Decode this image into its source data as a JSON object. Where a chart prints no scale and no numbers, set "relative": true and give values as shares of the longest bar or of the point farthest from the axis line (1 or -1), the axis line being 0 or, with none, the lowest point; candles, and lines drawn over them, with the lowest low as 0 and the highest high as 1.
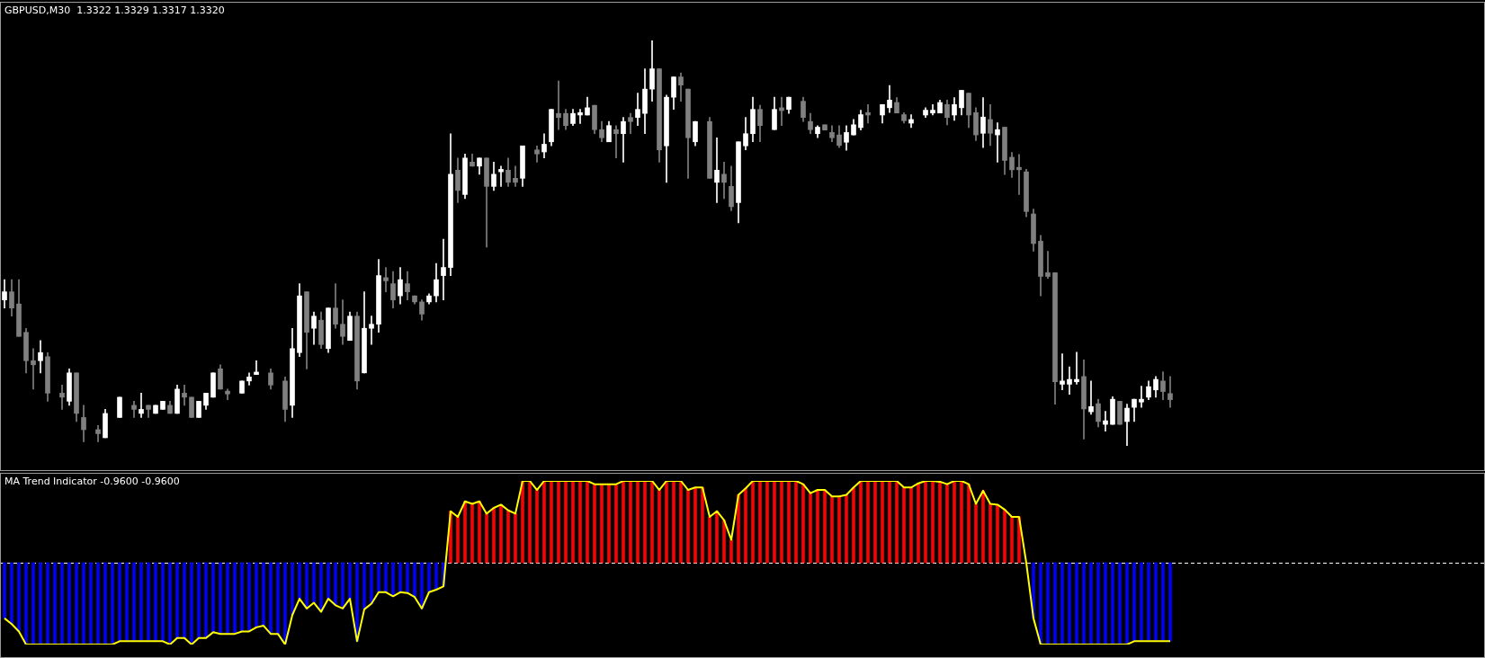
{
  "chart_data": [
    {
      "type": "candlestick",
      "title": "GBPUSD,M30  1.3322 1.3329 1.3317 1.3320",
      "relative": true,
      "tick_labels": false,
      "categories": [
        null,
        null,
        null,
        null,
        null,
        null,
        null,
        null,
        null,
        null,
        null,
        null,
        null,
        null,
        null,
        null,
        null,
        null,
        null,
        null,
        null,
        null,
        null,
        null,
        null,
        null,
        null,
        null,
        null,
        null,
        null,
        null,
        null,
        null,
        null,
        null,
        null,
        null,
        null,
        null,
        null,
        null,
        null,
        null,
        null,
        null,
        null,
        null,
        null,
        null,
        null,
        null,
        null,
        null,
        null,
        null,
        null,
        null,
        null,
        null,
        null,
        null,
        null,
        null,
        null,
        null,
        null,
        null,
        null,
        null,
        null,
        null,
        null,
        null,
        null,
        null,
        null,
        null,
        null,
        null,
        null,
        null,
        null,
        null,
        null,
        null,
        null,
        null,
        null,
        null,
        null,
        null,
        null,
        null,
        null,
        null,
        null,
        null,
        null,
        null,
        null,
        null,
        null,
        null,
        null,
        null,
        null,
        null,
        null,
        null,
        null,
        null,
        null,
        null,
        null,
        null,
        null,
        null,
        null,
        null,
        null,
        null,
        null,
        null,
        null,
        null,
        null,
        null,
        null,
        null,
        null,
        null,
        null,
        null,
        null,
        null,
        null,
        null,
        null,
        null,
        null,
        null,
        null,
        null,
        null,
        null,
        null,
        null,
        null,
        null,
        null,
        null,
        null,
        null,
        null,
        null,
        null,
        null,
        null,
        null,
        null,
        null,
        null
      ],
      "ohlc": [
        [
          0.36,
          0.41,
          0.34,
          0.38
        ],
        [
          0.38,
          0.41,
          0.32,
          0.34
        ],
        [
          0.35,
          0.41,
          0.27,
          0.27
        ],
        [
          0.28,
          0.29,
          0.18,
          0.21
        ],
        [
          0.21,
          0.24,
          0.14,
          0.2
        ],
        [
          0.21,
          0.26,
          0.18,
          0.23
        ],
        [
          0.22,
          0.23,
          0.11,
          0.13
        ],
        null,
        [
          0.13,
          0.15,
          0.09,
          0.12
        ],
        [
          0.11,
          0.19,
          0.1,
          0.18
        ],
        [
          0.18,
          0.18,
          0.06,
          0.08
        ],
        [
          0.07,
          0.1,
          0.01,
          0.04
        ],
        null,
        [
          0.04,
          0.05,
          0.01,
          0.03
        ],
        [
          0.02,
          0.09,
          0.02,
          0.08
        ],
        null,
        [
          0.07,
          0.12,
          0.07,
          0.12
        ],
        null,
        [
          0.1,
          0.11,
          0.07,
          0.09
        ],
        [
          0.08,
          0.13,
          0.07,
          0.09
        ],
        [
          0.1,
          0.1,
          0.07,
          0.09
        ],
        [
          0.08,
          0.1,
          0.08,
          0.1
        ],
        [
          0.09,
          0.11,
          0.09,
          0.11
        ],
        [
          0.1,
          0.11,
          0.08,
          0.08
        ],
        [
          0.08,
          0.15,
          0.08,
          0.14
        ],
        [
          0.13,
          0.15,
          0.1,
          0.12
        ],
        [
          0.12,
          0.12,
          0.07,
          0.07
        ],
        [
          0.07,
          0.11,
          0.07,
          0.11
        ],
        [
          0.1,
          0.13,
          0.09,
          0.13
        ],
        [
          0.12,
          0.18,
          0.12,
          0.18
        ],
        [
          0.19,
          0.2,
          0.14,
          0.14
        ],
        [
          0.135,
          0.14,
          0.114,
          0.128
        ],
        null,
        [
          0.13,
          0.16,
          0.13,
          0.16
        ],
        [
          0.16,
          0.18,
          0.15,
          0.17
        ],
        [
          0.176,
          0.21,
          0.176,
          0.182
        ],
        null,
        [
          0.18,
          0.19,
          0.14,
          0.15
        ],
        null,
        [
          0.16,
          0.17,
          0.06,
          0.09
        ],
        [
          0.1,
          0.29,
          0.07,
          0.24
        ],
        [
          0.23,
          0.4,
          0.22,
          0.37
        ],
        [
          0.38,
          0.38,
          0.19,
          0.28
        ],
        [
          0.29,
          0.33,
          0.25,
          0.32
        ],
        [
          0.31,
          0.33,
          0.24,
          0.25
        ],
        [
          0.24,
          0.34,
          0.23,
          0.34
        ],
        [
          0.34,
          0.4,
          0.29,
          0.3
        ],
        [
          0.3,
          0.36,
          0.25,
          0.27
        ],
        [
          0.26,
          0.33,
          0.26,
          0.32
        ],
        [
          0.32,
          0.33,
          0.14,
          0.16
        ],
        [
          0.18,
          0.38,
          0.18,
          0.29
        ],
        [
          0.29,
          0.32,
          0.25,
          0.3
        ],
        [
          0.3,
          0.46,
          0.28,
          0.42
        ],
        [
          0.415,
          0.44,
          0.38,
          0.407
        ],
        [
          0.4,
          0.43,
          0.34,
          0.36
        ],
        [
          0.37,
          0.44,
          0.35,
          0.41
        ],
        [
          0.4,
          0.43,
          0.36,
          0.38
        ],
        [
          0.37,
          0.37,
          0.35,
          0.355
        ],
        [
          0.355,
          0.36,
          0.31,
          0.325
        ],
        [
          0.355,
          0.375,
          0.35,
          0.37
        ],
        [
          0.37,
          0.45,
          0.355,
          0.41
        ],
        [
          0.42,
          0.51,
          0.36,
          0.44
        ],
        [
          0.44,
          0.77,
          0.42,
          0.67
        ],
        [
          0.68,
          0.71,
          0.6,
          0.63
        ],
        [
          0.62,
          0.72,
          0.61,
          0.71
        ],
        [
          0.7,
          0.72,
          0.69,
          0.69
        ],
        [
          0.69,
          0.71,
          0.67,
          0.71
        ],
        [
          0.71,
          0.71,
          0.49,
          0.64
        ],
        [
          0.64,
          0.7,
          0.63,
          0.67
        ],
        [
          0.676,
          0.69,
          0.64,
          0.682
        ],
        [
          0.68,
          0.71,
          0.64,
          0.65
        ],
        [
          0.66,
          0.69,
          0.64,
          0.65
        ],
        [
          0.66,
          0.74,
          0.64,
          0.74
        ],
        null,
        [
          0.73,
          0.74,
          0.7,
          0.72
        ],
        [
          0.725,
          0.77,
          0.71,
          0.744
        ],
        [
          0.75,
          0.83,
          0.74,
          0.83
        ],
        [
          0.82,
          0.9,
          0.78,
          0.81
        ],
        [
          0.82,
          0.83,
          0.78,
          0.79
        ],
        [
          0.795,
          0.83,
          0.79,
          0.82
        ],
        [
          0.816,
          0.83,
          0.795,
          0.822
        ],
        [
          0.816,
          0.86,
          0.816,
          0.834
        ],
        [
          0.84,
          0.84,
          0.77,
          0.78
        ],
        [
          0.78,
          0.8,
          0.75,
          0.76
        ],
        [
          0.75,
          0.8,
          0.75,
          0.79
        ],
        [
          0.78,
          0.79,
          0.71,
          0.77
        ],
        [
          0.77,
          0.81,
          0.7,
          0.8
        ],
        [
          0.81,
          0.82,
          0.77,
          0.8
        ],
        [
          0.81,
          0.87,
          0.79,
          0.83
        ],
        [
          0.82,
          0.93,
          0.77,
          0.88
        ],
        [
          0.88,
          1,
          0.85,
          0.93
        ],
        [
          0.93,
          0.93,
          0.7,
          0.73
        ],
        [
          0.74,
          0.865,
          0.65,
          0.86
        ],
        [
          0.86,
          0.91,
          0.83,
          0.91
        ],
        [
          0.91,
          0.92,
          0.85,
          0.89
        ],
        [
          0.88,
          0.88,
          0.66,
          0.76
        ],
        [
          0.75,
          0.8,
          0.74,
          0.8
        ],
        null,
        [
          0.8,
          0.81,
          0.66,
          0.66
        ],
        [
          0.65,
          0.76,
          0.6,
          0.68
        ],
        [
          0.67,
          0.7,
          0.61,
          0.65
        ],
        [
          0.64,
          0.69,
          0.58,
          0.59
        ],
        [
          0.6,
          0.75,
          0.55,
          0.75
        ],
        [
          0.74,
          0.81,
          0.73,
          0.77
        ],
        [
          0.77,
          0.86,
          0.75,
          0.83
        ],
        [
          0.83,
          0.84,
          0.75,
          0.79
        ],
        null,
        [
          0.78,
          0.86,
          0.78,
          0.83
        ],
        [
          0.834,
          0.86,
          0.79,
          0.827
        ],
        [
          0.83,
          0.86,
          0.82,
          0.86
        ],
        null,
        [
          0.85,
          0.86,
          0.8,
          0.81
        ],
        [
          0.8,
          0.82,
          0.77,
          0.78
        ],
        [
          0.77,
          0.79,
          0.76,
          0.786
        ],
        [
          0.792,
          0.792,
          0.779,
          0.779
        ],
        [
          0.773,
          0.79,
          0.75,
          0.76
        ],
        [
          0.767,
          0.79,
          0.736,
          0.741
        ],
        [
          0.749,
          0.79,
          0.729,
          0.773
        ],
        [
          0.767,
          0.805,
          0.767,
          0.792
        ],
        [
          0.785,
          0.828,
          0.779,
          0.817
        ],
        [
          0.822,
          0.842,
          0.796,
          0.816
        ],
        null,
        [
          0.816,
          0.842,
          0.796,
          0.842
        ],
        [
          0.834,
          0.889,
          0.822,
          0.853
        ],
        [
          0.847,
          0.859,
          0.821,
          0.821
        ],
        [
          0.817,
          0.822,
          0.796,
          0.802
        ],
        [
          0.796,
          0.817,
          0.785,
          0.805
        ],
        null,
        [
          0.816,
          0.834,
          0.81,
          0.828
        ],
        [
          0.821,
          0.842,
          0.816,
          0.828
        ],
        [
          0.821,
          0.853,
          0.821,
          0.847
        ],
        [
          0.842,
          0.853,
          0.792,
          0.81
        ],
        [
          0.816,
          0.859,
          0.803,
          0.842
        ],
        [
          0.834,
          0.877,
          0.816,
          0.877
        ],
        [
          0.87,
          0.87,
          0.785,
          0.816
        ],
        [
          0.822,
          0.834,
          0.753,
          0.767
        ],
        [
          0.771,
          0.859,
          0.736,
          0.811
        ],
        [
          0.805,
          0.842,
          0.741,
          0.771
        ],
        [
          0.767,
          0.797,
          0.7,
          0.78
        ],
        [
          0.786,
          0.786,
          0.669,
          0.704
        ],
        [
          0.712,
          0.724,
          0.662,
          0.681
        ],
        [
          0.687,
          0.719,
          0.62,
          0.681
        ],
        [
          0.676,
          0.682,
          0.565,
          0.578
        ],
        [
          0.572,
          0.584,
          0.48,
          0.499
        ],
        [
          0.505,
          0.519,
          0.37,
          0.418
        ],
        [
          0.427,
          0.48,
          0.413,
          0.418
        ],
        [
          0.427,
          0.427,
          0.103,
          0.158
        ],
        [
          0.152,
          0.227,
          0.138,
          0.16
        ],
        [
          0.152,
          0.195,
          0.127,
          0.164
        ],
        [
          0.158,
          0.231,
          0.152,
          0.164
        ],
        [
          0.171,
          0.212,
          0.017,
          0.091
        ],
        [
          0.084,
          0.16,
          0.078,
          0.097
        ],
        [
          0.104,
          0.115,
          0.047,
          0.06
        ],
        [
          0.053,
          0.085,
          0.036,
          0.062
        ],
        [
          0.053,
          0.121,
          0.053,
          0.115
        ],
        [
          0.11,
          0.11,
          0.053,
          0.053
        ],
        [
          0.06,
          0.103,
          0,
          0.093
        ],
        [
          0.095,
          0.115,
          0.06,
          0.115
        ],
        [
          0.108,
          0.147,
          0.095,
          0.115
        ],
        [
          0.12,
          0.16,
          0.114,
          0.146
        ],
        [
          0.138,
          0.171,
          0.12,
          0.164
        ],
        [
          0.16,
          0.183,
          0.114,
          0.134
        ],
        [
          0.129,
          0.171,
          0.095,
          0.114
        ]
      ],
      "colors": [
        "#ffffff",
        "#808080",
        "#808080",
        "#808080",
        "#808080",
        "#ffffff",
        "#808080",
        null,
        "#808080",
        "#ffffff",
        "#808080",
        "#808080",
        null,
        "#808080",
        "#ffffff",
        null,
        "#ffffff",
        null,
        "#808080",
        "#ffffff",
        "#808080",
        "#ffffff",
        "#ffffff",
        "#808080",
        "#ffffff",
        "#808080",
        "#808080",
        "#ffffff",
        "#ffffff",
        "#ffffff",
        "#808080",
        "#808080",
        null,
        "#ffffff",
        "#ffffff",
        "#ffffff",
        null,
        "#808080",
        null,
        "#808080",
        "#ffffff",
        "#ffffff",
        "#808080",
        "#ffffff",
        "#808080",
        "#ffffff",
        "#808080",
        "#808080",
        "#ffffff",
        "#808080",
        "#ffffff",
        "#ffffff",
        "#ffffff",
        "#808080",
        "#808080",
        "#ffffff",
        "#808080",
        "#808080",
        "#808080",
        "#ffffff",
        "#ffffff",
        "#ffffff",
        "#ffffff",
        "#808080",
        "#ffffff",
        "#808080",
        "#ffffff",
        "#808080",
        "#ffffff",
        "#ffffff",
        "#808080",
        "#808080",
        "#ffffff",
        null,
        "#808080",
        "#ffffff",
        "#ffffff",
        "#808080",
        "#808080",
        "#ffffff",
        "#ffffff",
        "#ffffff",
        "#808080",
        "#808080",
        "#ffffff",
        "#808080",
        "#ffffff",
        "#808080",
        "#ffffff",
        "#ffffff",
        "#ffffff",
        "#808080",
        "#ffffff",
        "#ffffff",
        "#808080",
        "#808080",
        "#ffffff",
        null,
        "#808080",
        "#ffffff",
        "#808080",
        "#808080",
        "#ffffff",
        "#ffffff",
        "#ffffff",
        "#808080",
        null,
        "#ffffff",
        "#808080",
        "#ffffff",
        null,
        "#808080",
        "#808080",
        "#ffffff",
        "#808080",
        "#808080",
        "#808080",
        "#ffffff",
        "#ffffff",
        "#ffffff",
        "#808080",
        null,
        "#ffffff",
        "#ffffff",
        "#808080",
        "#808080",
        "#ffffff",
        null,
        "#ffffff",
        "#ffffff",
        "#ffffff",
        "#808080",
        "#ffffff",
        "#ffffff",
        "#808080",
        "#808080",
        "#ffffff",
        "#808080",
        "#ffffff",
        "#808080",
        "#808080",
        "#808080",
        "#808080",
        "#808080",
        "#808080",
        "#808080",
        "#808080",
        "#ffffff",
        "#ffffff",
        "#ffffff",
        "#808080",
        "#ffffff",
        "#808080",
        "#ffffff",
        "#ffffff",
        "#808080",
        "#ffffff",
        "#ffffff",
        "#ffffff",
        "#ffffff",
        "#ffffff",
        "#808080",
        "#808080"
      ]
    },
    {
      "type": "bar",
      "title": "MA Trend Indicator -0.9600 -0.9600",
      "relative": true,
      "tick_labels": false,
      "categories": [
        null,
        null,
        null,
        null,
        null,
        null,
        null,
        null,
        null,
        null,
        null,
        null,
        null,
        null,
        null,
        null,
        null,
        null,
        null,
        null,
        null,
        null,
        null,
        null,
        null,
        null,
        null,
        null,
        null,
        null,
        null,
        null,
        null,
        null,
        null,
        null,
        null,
        null,
        null,
        null,
        null,
        null,
        null,
        null,
        null,
        null,
        null,
        null,
        null,
        null,
        null,
        null,
        null,
        null,
        null,
        null,
        null,
        null,
        null,
        null,
        null,
        null,
        null,
        null,
        null,
        null,
        null,
        null,
        null,
        null,
        null,
        null,
        null,
        null,
        null,
        null,
        null,
        null,
        null,
        null,
        null,
        null,
        null,
        null,
        null,
        null,
        null,
        null,
        null,
        null,
        null,
        null,
        null,
        null,
        null,
        null,
        null,
        null,
        null,
        null,
        null,
        null,
        null,
        null,
        null,
        null,
        null,
        null,
        null,
        null,
        null,
        null,
        null,
        null,
        null,
        null,
        null,
        null,
        null,
        null,
        null,
        null,
        null,
        null,
        null,
        null,
        null,
        null,
        null,
        null,
        null,
        null,
        null,
        null,
        null,
        null,
        null,
        null,
        null,
        null,
        null,
        null,
        null,
        null,
        null,
        null,
        null,
        null,
        null,
        null,
        null,
        null,
        null,
        null,
        null,
        null,
        null,
        null,
        null,
        null,
        null,
        null,
        null
      ],
      "ref_lines": [
        {
          "axis": "y",
          "value": 0,
          "color": "#ffffff",
          "line_style": "dashed"
        }
      ],
      "series": [
        {
          "type": "bar",
          "values": [
            -0.68,
            -0.75,
            -0.84,
            -1,
            -1,
            -1,
            -1,
            -1,
            -1,
            -1,
            -1,
            -1,
            -1,
            -1,
            -1,
            -1,
            -0.96,
            -0.96,
            -0.96,
            -0.96,
            -0.96,
            -0.96,
            -0.96,
            -1,
            -0.92,
            -0.92,
            -1,
            -0.92,
            -0.92,
            -0.85,
            -0.87,
            -0.87,
            -0.87,
            -0.84,
            -0.84,
            -0.79,
            -0.77,
            -0.87,
            -0.87,
            -1,
            -0.64,
            -0.44,
            -0.56,
            -0.49,
            -0.6,
            -0.44,
            -0.52,
            -0.56,
            -0.44,
            -0.96,
            -0.57,
            -0.5,
            -0.36,
            -0.36,
            -0.41,
            -0.36,
            -0.37,
            -0.42,
            -0.56,
            -0.36,
            -0.33,
            -0.29,
            0.63,
            0.56,
            0.75,
            0.72,
            0.75,
            0.6,
            0.67,
            0.71,
            0.64,
            0.6,
            1,
            1,
            0.89,
            1,
            1,
            1,
            1,
            1,
            1,
            1,
            0.96,
            0.96,
            0.96,
            0.96,
            1,
            1,
            1,
            1,
            1,
            0.89,
            1,
            1,
            1,
            0.89,
            0.92,
            0.92,
            0.56,
            0.63,
            0.52,
            0.28,
            0.83,
            0.91,
            1,
            1,
            1,
            1,
            1,
            1,
            1,
            0.96,
            0.85,
            0.89,
            0.89,
            0.81,
            0.81,
            0.83,
            0.92,
            1,
            1,
            1,
            1,
            1,
            1,
            0.92,
            0.92,
            0.97,
            1,
            1,
            0.99,
            0.96,
            1,
            1,
            0.96,
            0.72,
            0.88,
            0.72,
            0.71,
            0.65,
            0.56,
            0.56,
            0,
            -0.68,
            -1,
            -1,
            -1,
            -1,
            -1,
            -1,
            -1,
            -1,
            -1,
            -1,
            -1,
            -1,
            -1,
            -0.96,
            -0.96,
            -0.96,
            -0.96,
            -0.96,
            -0.96
          ],
          "colors": [
            "#0000ff",
            "#0000ff",
            "#0000ff",
            "#0000ff",
            "#0000ff",
            "#0000ff",
            "#0000ff",
            "#0000ff",
            "#0000ff",
            "#0000ff",
            "#0000ff",
            "#0000ff",
            "#0000ff",
            "#0000ff",
            "#0000ff",
            "#0000ff",
            "#0000ff",
            "#0000ff",
            "#0000ff",
            "#0000ff",
            "#0000ff",
            "#0000ff",
            "#0000ff",
            "#0000ff",
            "#0000ff",
            "#0000ff",
            "#0000ff",
            "#0000ff",
            "#0000ff",
            "#0000ff",
            "#0000ff",
            "#0000ff",
            "#0000ff",
            "#0000ff",
            "#0000ff",
            "#0000ff",
            "#0000ff",
            "#0000ff",
            "#0000ff",
            "#0000ff",
            "#0000ff",
            "#0000ff",
            "#0000ff",
            "#0000ff",
            "#0000ff",
            "#0000ff",
            "#0000ff",
            "#0000ff",
            "#0000ff",
            "#0000ff",
            "#0000ff",
            "#0000ff",
            "#0000ff",
            "#0000ff",
            "#0000ff",
            "#0000ff",
            "#0000ff",
            "#0000ff",
            "#0000ff",
            "#0000ff",
            "#0000ff",
            "#0000ff",
            "#ff0000",
            "#ff0000",
            "#ff0000",
            "#ff0000",
            "#ff0000",
            "#ff0000",
            "#ff0000",
            "#ff0000",
            "#ff0000",
            "#ff0000",
            "#ff0000",
            "#ff0000",
            "#ff0000",
            "#ff0000",
            "#ff0000",
            "#ff0000",
            "#ff0000",
            "#ff0000",
            "#ff0000",
            "#ff0000",
            "#ff0000",
            "#ff0000",
            "#ff0000",
            "#ff0000",
            "#ff0000",
            "#ff0000",
            "#ff0000",
            "#ff0000",
            "#ff0000",
            "#ff0000",
            "#ff0000",
            "#ff0000",
            "#ff0000",
            "#ff0000",
            "#ff0000",
            "#ff0000",
            "#ff0000",
            "#ff0000",
            "#ff0000",
            "#ff0000",
            "#ff0000",
            "#ff0000",
            "#ff0000",
            "#ff0000",
            "#ff0000",
            "#ff0000",
            "#ff0000",
            "#ff0000",
            "#ff0000",
            "#ff0000",
            "#ff0000",
            "#ff0000",
            "#ff0000",
            "#ff0000",
            "#ff0000",
            "#ff0000",
            "#ff0000",
            "#ff0000",
            "#ff0000",
            "#ff0000",
            "#ff0000",
            "#ff0000",
            "#ff0000",
            "#ff0000",
            "#ff0000",
            "#ff0000",
            "#ff0000",
            "#ff0000",
            "#ff0000",
            "#ff0000",
            "#ff0000",
            "#ff0000",
            "#ff0000",
            "#ff0000",
            "#ff0000",
            "#ff0000",
            "#ff0000",
            "#ff0000",
            "#ff0000",
            "#ff0000",
            "#ff0000",
            "#0000ff",
            "#0000ff",
            "#0000ff",
            "#0000ff",
            "#0000ff",
            "#0000ff",
            "#0000ff",
            "#0000ff",
            "#0000ff",
            "#0000ff",
            "#0000ff",
            "#0000ff",
            "#0000ff",
            "#0000ff",
            "#0000ff",
            "#0000ff",
            "#0000ff",
            "#0000ff",
            "#0000ff",
            "#0000ff"
          ]
        },
        {
          "type": "line",
          "color": "#ffff00",
          "values": [
            -0.68,
            -0.75,
            -0.84,
            -1,
            -1,
            -1,
            -1,
            -1,
            -1,
            -1,
            -1,
            -1,
            -1,
            -1,
            -1,
            -1,
            -0.96,
            -0.96,
            -0.96,
            -0.96,
            -0.96,
            -0.96,
            -0.96,
            -1,
            -0.92,
            -0.92,
            -1,
            -0.92,
            -0.92,
            -0.85,
            -0.87,
            -0.87,
            -0.87,
            -0.84,
            -0.84,
            -0.79,
            -0.77,
            -0.87,
            -0.87,
            -1,
            -0.64,
            -0.44,
            -0.56,
            -0.49,
            -0.6,
            -0.44,
            -0.52,
            -0.56,
            -0.44,
            -0.96,
            -0.57,
            -0.5,
            -0.36,
            -0.36,
            -0.41,
            -0.36,
            -0.37,
            -0.42,
            -0.56,
            -0.36,
            -0.33,
            -0.29,
            0.63,
            0.56,
            0.75,
            0.72,
            0.75,
            0.6,
            0.67,
            0.71,
            0.64,
            0.6,
            1,
            1,
            0.89,
            1,
            1,
            1,
            1,
            1,
            1,
            1,
            0.96,
            0.96,
            0.96,
            0.96,
            1,
            1,
            1,
            1,
            1,
            0.89,
            1,
            1,
            1,
            0.89,
            0.92,
            0.92,
            0.56,
            0.63,
            0.52,
            0.28,
            0.83,
            0.91,
            1,
            1,
            1,
            1,
            1,
            1,
            1,
            0.96,
            0.85,
            0.89,
            0.89,
            0.81,
            0.81,
            0.83,
            0.92,
            1,
            1,
            1,
            1,
            1,
            1,
            0.92,
            0.92,
            0.97,
            1,
            1,
            0.99,
            0.96,
            1,
            1,
            0.96,
            0.72,
            0.88,
            0.72,
            0.71,
            0.65,
            0.56,
            0.56,
            0,
            -0.68,
            -1,
            -1,
            -1,
            -1,
            -1,
            -1,
            -1,
            -1,
            -1,
            -1,
            -1,
            -1,
            -1,
            -0.96,
            -0.96,
            -0.96,
            -0.96,
            -0.96,
            -0.96
          ]
        }
      ]
    }
  ]
}
